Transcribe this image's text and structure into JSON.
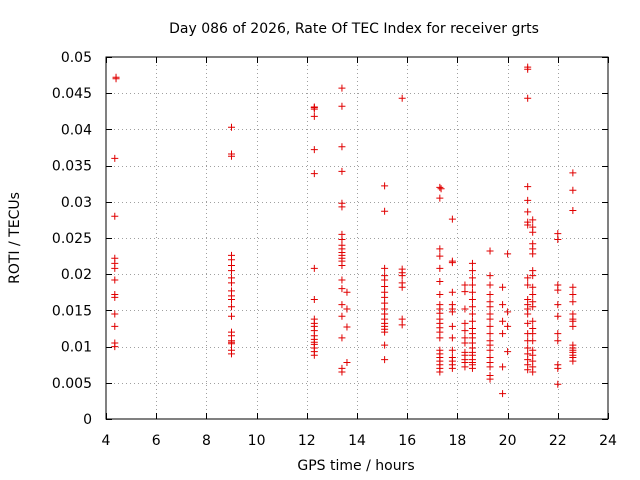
{
  "chart_data": {
    "type": "scatter",
    "title": "Day 086 of 2026, Rate Of TEC Index for receiver grts",
    "xlabel": "GPS time / hours",
    "ylabel": "ROTI / TECUs",
    "xlim": [
      4,
      24
    ],
    "ylim": [
      0,
      0.05
    ],
    "xticks": [
      4,
      6,
      8,
      10,
      12,
      14,
      16,
      18,
      20,
      22,
      24
    ],
    "xtick_labels": [
      "4",
      "6",
      "8",
      "10",
      "12",
      "14",
      "16",
      "18",
      "20",
      "22",
      "24"
    ],
    "yticks": [
      0,
      0.005,
      0.01,
      0.015,
      0.02,
      0.025,
      0.03,
      0.035,
      0.04,
      0.045,
      0.05
    ],
    "ytick_labels": [
      "0",
      "0.005",
      "0.01",
      "0.015",
      "0.02",
      "0.025",
      "0.03",
      "0.035",
      "0.04",
      "0.045",
      "0.05"
    ],
    "grid": true,
    "marker": "+",
    "color": "#e00000",
    "series": [
      {
        "name": "ROTI",
        "points": [
          [
            4.4,
            0.0472
          ],
          [
            4.4,
            0.047
          ],
          [
            4.35,
            0.036
          ],
          [
            4.35,
            0.028
          ],
          [
            4.35,
            0.0222
          ],
          [
            4.35,
            0.0215
          ],
          [
            4.35,
            0.0208
          ],
          [
            4.35,
            0.0192
          ],
          [
            4.35,
            0.0172
          ],
          [
            4.35,
            0.0168
          ],
          [
            4.35,
            0.0145
          ],
          [
            4.35,
            0.0128
          ],
          [
            4.35,
            0.0105
          ],
          [
            4.35,
            0.01
          ],
          [
            9.0,
            0.0403
          ],
          [
            9.0,
            0.0366
          ],
          [
            9.0,
            0.0363
          ],
          [
            9.0,
            0.0226
          ],
          [
            9.0,
            0.022
          ],
          [
            9.0,
            0.0212
          ],
          [
            9.0,
            0.0205
          ],
          [
            9.0,
            0.0195
          ],
          [
            9.0,
            0.0188
          ],
          [
            9.0,
            0.0177
          ],
          [
            9.0,
            0.017
          ],
          [
            9.0,
            0.0165
          ],
          [
            9.0,
            0.0155
          ],
          [
            9.0,
            0.0142
          ],
          [
            9.0,
            0.012
          ],
          [
            9.0,
            0.0115
          ],
          [
            9.0,
            0.0108
          ],
          [
            9.0,
            0.0106
          ],
          [
            9.0,
            0.0104
          ],
          [
            9.0,
            0.0095
          ],
          [
            9.0,
            0.009
          ],
          [
            12.3,
            0.0431
          ],
          [
            12.3,
            0.043
          ],
          [
            12.3,
            0.0428
          ],
          [
            12.3,
            0.0418
          ],
          [
            12.3,
            0.0372
          ],
          [
            12.3,
            0.0339
          ],
          [
            12.3,
            0.0208
          ],
          [
            12.3,
            0.0165
          ],
          [
            12.3,
            0.0138
          ],
          [
            12.3,
            0.0132
          ],
          [
            12.3,
            0.0128
          ],
          [
            12.3,
            0.0122
          ],
          [
            12.3,
            0.0115
          ],
          [
            12.3,
            0.011
          ],
          [
            12.3,
            0.0106
          ],
          [
            12.3,
            0.0103
          ],
          [
            12.3,
            0.0098
          ],
          [
            12.3,
            0.0093
          ],
          [
            12.3,
            0.0088
          ],
          [
            13.4,
            0.0457
          ],
          [
            13.4,
            0.0432
          ],
          [
            13.4,
            0.0376
          ],
          [
            13.4,
            0.0342
          ],
          [
            13.4,
            0.0298
          ],
          [
            13.4,
            0.0293
          ],
          [
            13.4,
            0.0255
          ],
          [
            13.4,
            0.0248
          ],
          [
            13.4,
            0.024
          ],
          [
            13.4,
            0.0235
          ],
          [
            13.4,
            0.023
          ],
          [
            13.4,
            0.0226
          ],
          [
            13.4,
            0.0222
          ],
          [
            13.4,
            0.0218
          ],
          [
            13.4,
            0.0212
          ],
          [
            13.4,
            0.0192
          ],
          [
            13.4,
            0.018
          ],
          [
            13.6,
            0.0175
          ],
          [
            13.4,
            0.0158
          ],
          [
            13.6,
            0.0152
          ],
          [
            13.4,
            0.0142
          ],
          [
            13.6,
            0.0127
          ],
          [
            13.4,
            0.0112
          ],
          [
            13.6,
            0.0078
          ],
          [
            13.4,
            0.007
          ],
          [
            13.4,
            0.0065
          ],
          [
            15.1,
            0.0322
          ],
          [
            15.1,
            0.0287
          ],
          [
            15.1,
            0.0208
          ],
          [
            15.1,
            0.0198
          ],
          [
            15.1,
            0.0192
          ],
          [
            15.1,
            0.0183
          ],
          [
            15.1,
            0.0175
          ],
          [
            15.1,
            0.0168
          ],
          [
            15.1,
            0.016
          ],
          [
            15.1,
            0.0152
          ],
          [
            15.1,
            0.0145
          ],
          [
            15.1,
            0.0138
          ],
          [
            15.1,
            0.0132
          ],
          [
            15.1,
            0.0128
          ],
          [
            15.1,
            0.0124
          ],
          [
            15.1,
            0.012
          ],
          [
            15.1,
            0.0102
          ],
          [
            15.1,
            0.0082
          ],
          [
            15.8,
            0.0443
          ],
          [
            15.8,
            0.0207
          ],
          [
            15.8,
            0.0202
          ],
          [
            15.8,
            0.0198
          ],
          [
            15.8,
            0.0188
          ],
          [
            15.8,
            0.0182
          ],
          [
            15.8,
            0.0138
          ],
          [
            15.8,
            0.013
          ],
          [
            17.3,
            0.032
          ],
          [
            17.35,
            0.0318
          ],
          [
            17.3,
            0.0305
          ],
          [
            17.3,
            0.0235
          ],
          [
            17.3,
            0.0225
          ],
          [
            17.3,
            0.0208
          ],
          [
            17.3,
            0.019
          ],
          [
            17.3,
            0.0172
          ],
          [
            17.3,
            0.0158
          ],
          [
            17.3,
            0.0152
          ],
          [
            17.3,
            0.0146
          ],
          [
            17.3,
            0.0138
          ],
          [
            17.3,
            0.0132
          ],
          [
            17.3,
            0.0126
          ],
          [
            17.3,
            0.012
          ],
          [
            17.3,
            0.0112
          ],
          [
            17.3,
            0.0095
          ],
          [
            17.3,
            0.009
          ],
          [
            17.3,
            0.0085
          ],
          [
            17.3,
            0.008
          ],
          [
            17.3,
            0.0075
          ],
          [
            17.3,
            0.007
          ],
          [
            17.3,
            0.0065
          ],
          [
            17.8,
            0.0276
          ],
          [
            17.8,
            0.0218
          ],
          [
            17.8,
            0.0216
          ],
          [
            17.8,
            0.0175
          ],
          [
            17.8,
            0.0158
          ],
          [
            17.8,
            0.0152
          ],
          [
            17.8,
            0.0148
          ],
          [
            17.8,
            0.0128
          ],
          [
            17.8,
            0.0112
          ],
          [
            17.8,
            0.0095
          ],
          [
            17.8,
            0.0085
          ],
          [
            17.8,
            0.008
          ],
          [
            17.8,
            0.0075
          ],
          [
            17.8,
            0.007
          ],
          [
            18.3,
            0.0185
          ],
          [
            18.3,
            0.0176
          ],
          [
            18.3,
            0.0152
          ],
          [
            18.3,
            0.0132
          ],
          [
            18.3,
            0.0122
          ],
          [
            18.3,
            0.0112
          ],
          [
            18.3,
            0.0105
          ],
          [
            18.3,
            0.0092
          ],
          [
            18.3,
            0.0088
          ],
          [
            18.3,
            0.0082
          ],
          [
            18.3,
            0.0078
          ],
          [
            18.3,
            0.0072
          ],
          [
            18.6,
            0.0215
          ],
          [
            18.6,
            0.0205
          ],
          [
            18.6,
            0.0195
          ],
          [
            18.6,
            0.0185
          ],
          [
            18.6,
            0.0175
          ],
          [
            18.6,
            0.0165
          ],
          [
            18.6,
            0.0155
          ],
          [
            18.6,
            0.0145
          ],
          [
            18.6,
            0.0135
          ],
          [
            18.6,
            0.0125
          ],
          [
            18.6,
            0.0118
          ],
          [
            18.6,
            0.0112
          ],
          [
            18.6,
            0.0105
          ],
          [
            18.6,
            0.0098
          ],
          [
            18.6,
            0.0092
          ],
          [
            18.6,
            0.0088
          ],
          [
            18.6,
            0.0082
          ],
          [
            18.6,
            0.0078
          ],
          [
            18.6,
            0.0075
          ],
          [
            18.6,
            0.007
          ],
          [
            19.3,
            0.0232
          ],
          [
            19.3,
            0.0198
          ],
          [
            19.3,
            0.0185
          ],
          [
            19.3,
            0.0172
          ],
          [
            19.3,
            0.0162
          ],
          [
            19.3,
            0.0155
          ],
          [
            19.3,
            0.0145
          ],
          [
            19.3,
            0.0138
          ],
          [
            19.3,
            0.0128
          ],
          [
            19.3,
            0.0118
          ],
          [
            19.3,
            0.0108
          ],
          [
            19.3,
            0.0102
          ],
          [
            19.3,
            0.0095
          ],
          [
            19.3,
            0.0085
          ],
          [
            19.3,
            0.0078
          ],
          [
            19.3,
            0.0072
          ],
          [
            19.3,
            0.006
          ],
          [
            19.3,
            0.0055
          ],
          [
            19.8,
            0.0182
          ],
          [
            19.8,
            0.0158
          ],
          [
            19.8,
            0.0135
          ],
          [
            19.8,
            0.0118
          ],
          [
            19.8,
            0.0072
          ],
          [
            19.8,
            0.0035
          ],
          [
            20.0,
            0.0228
          ],
          [
            20.0,
            0.0148
          ],
          [
            20.0,
            0.0128
          ],
          [
            20.0,
            0.0093
          ],
          [
            20.8,
            0.0486
          ],
          [
            20.8,
            0.0483
          ],
          [
            20.8,
            0.0443
          ],
          [
            20.8,
            0.0321
          ],
          [
            20.8,
            0.0302
          ],
          [
            20.8,
            0.0286
          ],
          [
            20.8,
            0.0272
          ],
          [
            20.8,
            0.0268
          ],
          [
            20.8,
            0.0195
          ],
          [
            20.8,
            0.0185
          ],
          [
            20.8,
            0.0165
          ],
          [
            20.8,
            0.0158
          ],
          [
            20.8,
            0.0152
          ],
          [
            20.8,
            0.0145
          ],
          [
            20.8,
            0.0132
          ],
          [
            20.8,
            0.0118
          ],
          [
            20.8,
            0.0108
          ],
          [
            20.8,
            0.0098
          ],
          [
            20.8,
            0.009
          ],
          [
            20.8,
            0.0082
          ],
          [
            20.8,
            0.0075
          ],
          [
            20.8,
            0.0068
          ],
          [
            21.0,
            0.0275
          ],
          [
            21.0,
            0.0265
          ],
          [
            21.0,
            0.0258
          ],
          [
            21.0,
            0.0242
          ],
          [
            21.0,
            0.0235
          ],
          [
            21.0,
            0.0228
          ],
          [
            21.0,
            0.0205
          ],
          [
            21.0,
            0.0198
          ],
          [
            21.0,
            0.0182
          ],
          [
            21.0,
            0.0172
          ],
          [
            21.0,
            0.0162
          ],
          [
            21.0,
            0.0155
          ],
          [
            21.0,
            0.0135
          ],
          [
            21.0,
            0.0125
          ],
          [
            21.0,
            0.0118
          ],
          [
            21.0,
            0.0108
          ],
          [
            21.0,
            0.0095
          ],
          [
            21.0,
            0.0088
          ],
          [
            21.0,
            0.008
          ],
          [
            21.0,
            0.0072
          ],
          [
            21.0,
            0.0065
          ],
          [
            22.0,
            0.0256
          ],
          [
            22.0,
            0.0248
          ],
          [
            22.0,
            0.0185
          ],
          [
            22.0,
            0.0178
          ],
          [
            22.0,
            0.0158
          ],
          [
            22.0,
            0.0142
          ],
          [
            22.0,
            0.0118
          ],
          [
            22.0,
            0.0108
          ],
          [
            22.0,
            0.0075
          ],
          [
            22.0,
            0.007
          ],
          [
            22.0,
            0.0048
          ],
          [
            22.6,
            0.034
          ],
          [
            22.6,
            0.0316
          ],
          [
            22.6,
            0.0288
          ],
          [
            22.6,
            0.0182
          ],
          [
            22.6,
            0.0172
          ],
          [
            22.6,
            0.0162
          ],
          [
            22.6,
            0.0145
          ],
          [
            22.6,
            0.0138
          ],
          [
            22.6,
            0.0135
          ],
          [
            22.6,
            0.0128
          ],
          [
            22.6,
            0.0102
          ],
          [
            22.6,
            0.0098
          ],
          [
            22.6,
            0.0095
          ],
          [
            22.6,
            0.0092
          ],
          [
            22.6,
            0.0088
          ],
          [
            22.6,
            0.0085
          ],
          [
            22.6,
            0.008
          ]
        ]
      }
    ]
  }
}
